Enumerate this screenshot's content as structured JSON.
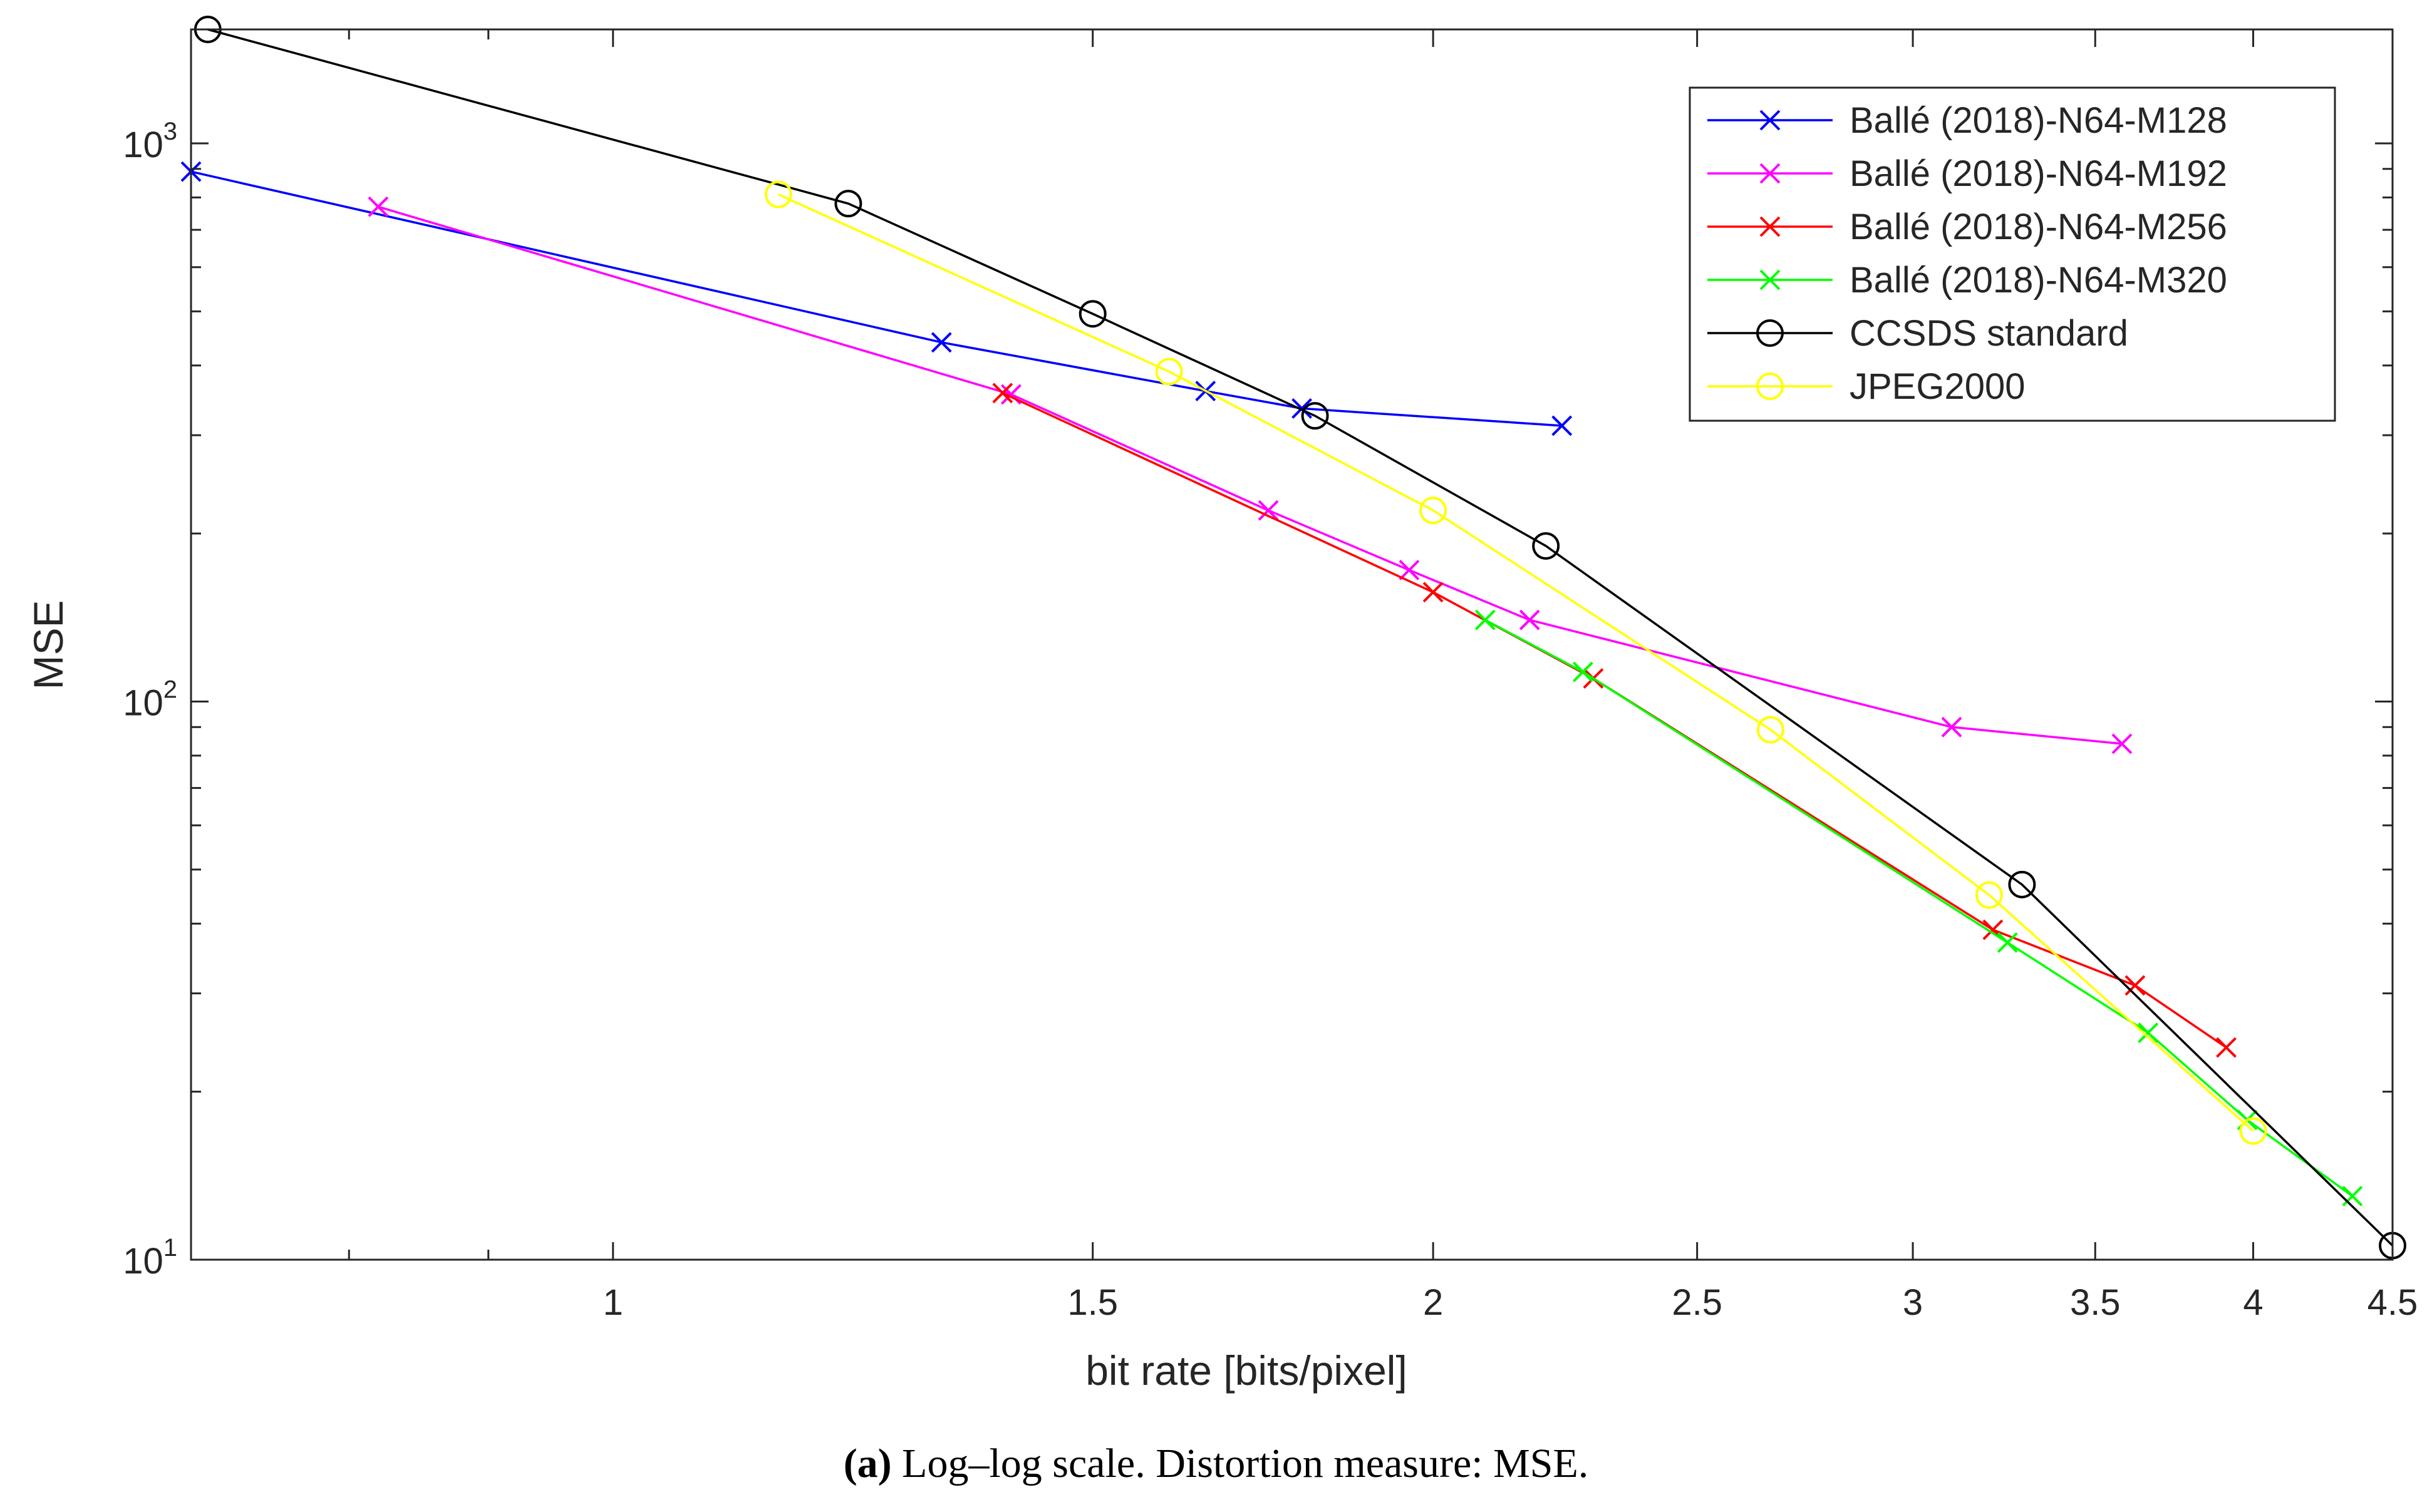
{
  "chart_data": {
    "type": "line",
    "xscale": "log",
    "yscale": "log",
    "xlabel": "bit rate [bits/pixel]",
    "ylabel": "MSE",
    "xlim": [
      0.7,
      4.5
    ],
    "ylim": [
      10,
      1600
    ],
    "xticks": [
      1,
      1.5,
      2,
      2.5,
      3,
      3.5,
      4,
      4.5
    ],
    "xtick_labels": [
      "1",
      "1.5",
      "2",
      "2.5",
      "3",
      "3.5",
      "4",
      "4.5"
    ],
    "yticks": [
      10,
      100,
      1000
    ],
    "ytick_labels": [
      {
        "base": "10",
        "exp": "1"
      },
      {
        "base": "10",
        "exp": "2"
      },
      {
        "base": "10",
        "exp": "3"
      }
    ],
    "legend_position": "top-right",
    "series": [
      {
        "name": "Ballé (2018)-N64-M128",
        "color": "#0000ff",
        "marker": "x",
        "x": [
          0.7,
          1.32,
          1.65,
          1.79,
          2.23
        ],
        "y": [
          890,
          440,
          360,
          335,
          312
        ]
      },
      {
        "name": "Ballé (2018)-N64-M192",
        "color": "#ff00ff",
        "marker": "x",
        "x": [
          0.82,
          1.4,
          1.74,
          1.96,
          2.17,
          3.1,
          3.58
        ],
        "y": [
          770,
          355,
          220,
          172,
          140,
          90,
          84
        ]
      },
      {
        "name": "Ballé (2018)-N64-M256",
        "color": "#ff0000",
        "marker": "x",
        "x": [
          1.39,
          2.0,
          2.29,
          3.21,
          3.62,
          3.91
        ],
        "y": [
          357,
          157,
          110,
          39,
          31,
          24
        ]
      },
      {
        "name": "Ballé (2018)-N64-M320",
        "color": "#00ff00",
        "marker": "x",
        "x": [
          2.09,
          2.27,
          3.25,
          3.66,
          3.98,
          4.35
        ],
        "y": [
          140,
          113,
          37,
          25.5,
          17.8,
          13
        ]
      },
      {
        "name": "CCSDS standard",
        "color": "#000000",
        "marker": "o",
        "x": [
          0.71,
          1.22,
          1.5,
          1.81,
          2.2,
          3.29,
          4.5
        ],
        "y": [
          1600,
          780,
          495,
          325,
          190,
          47,
          10.6
        ]
      },
      {
        "name": "JPEG2000",
        "color": "#ffff00",
        "marker": "o",
        "x": [
          1.15,
          1.6,
          2.0,
          2.66,
          3.2,
          4.0
        ],
        "y": [
          810,
          390,
          220,
          89,
          45,
          17
        ]
      }
    ]
  },
  "caption": {
    "label": "(a)",
    "text": "Log–log scale. Distortion measure: MSE."
  }
}
